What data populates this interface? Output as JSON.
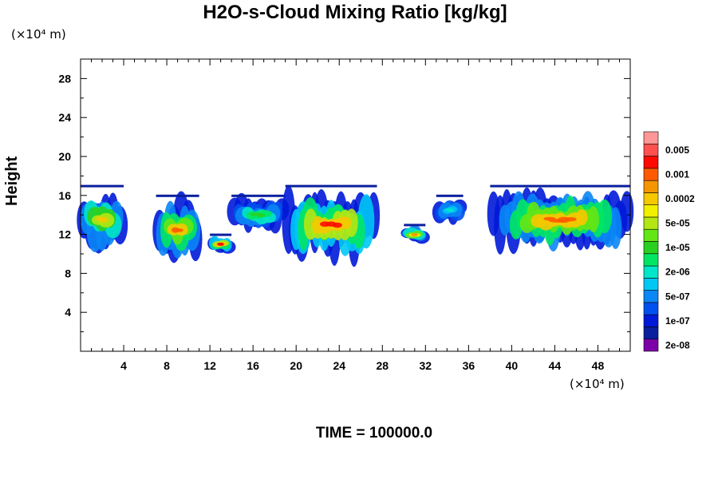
{
  "title": "H2O-s-Cloud Mixing Ratio [kg/kg]",
  "y_unit": "(×10⁴ m)",
  "x_unit": "(×10⁴ m)",
  "time_label": "TIME = 100000.0",
  "chart_data": {
    "type": "heatmap",
    "title": "H2O-s-Cloud Mixing Ratio [kg/kg]",
    "ylabel": "Height",
    "xlabel": "",
    "x_unit": "(×10⁴ m)",
    "y_unit": "(×10⁴ m)",
    "xlim": [
      0,
      51
    ],
    "ylim": [
      0,
      30
    ],
    "x_ticks": [
      4,
      8,
      12,
      16,
      20,
      24,
      28,
      32,
      36,
      40,
      44,
      48
    ],
    "y_ticks": [
      4,
      8,
      12,
      16,
      20,
      24,
      28
    ],
    "colorbar": {
      "colors": [
        "#7b00a8",
        "#0a1f9e",
        "#0019d8",
        "#0050f0",
        "#0a86f5",
        "#00c8f5",
        "#00e6c8",
        "#00e664",
        "#2ad020",
        "#64e614",
        "#b4e614",
        "#f0f000",
        "#f5c800",
        "#f59600",
        "#ff5a00",
        "#ff0a00",
        "#ff5050",
        "#ff9696"
      ],
      "labels": [
        "2e-08",
        "1e-07",
        "5e-07",
        "2e-06",
        "1e-05",
        "5e-05",
        "0.0002",
        "0.001",
        "0.005"
      ]
    },
    "cloud_regions": [
      {
        "x": [
          0,
          4
        ],
        "y": [
          10,
          17
        ],
        "peak": 12
      },
      {
        "x": [
          7,
          11
        ],
        "y": [
          9,
          16
        ],
        "peak": 14
      },
      {
        "x": [
          12,
          14
        ],
        "y": [
          10,
          12
        ],
        "peak": 15
      },
      {
        "x": [
          14,
          19
        ],
        "y": [
          12,
          16
        ],
        "peak": 8
      },
      {
        "x": [
          19,
          27.5
        ],
        "y": [
          9,
          17
        ],
        "peak": 15
      },
      {
        "x": [
          30,
          32
        ],
        "y": [
          11,
          13
        ],
        "peak": 13
      },
      {
        "x": [
          33,
          35.5
        ],
        "y": [
          13,
          16
        ],
        "peak": 6
      },
      {
        "x": [
          38,
          51
        ],
        "y": [
          10,
          17
        ],
        "peak": 14
      }
    ]
  }
}
